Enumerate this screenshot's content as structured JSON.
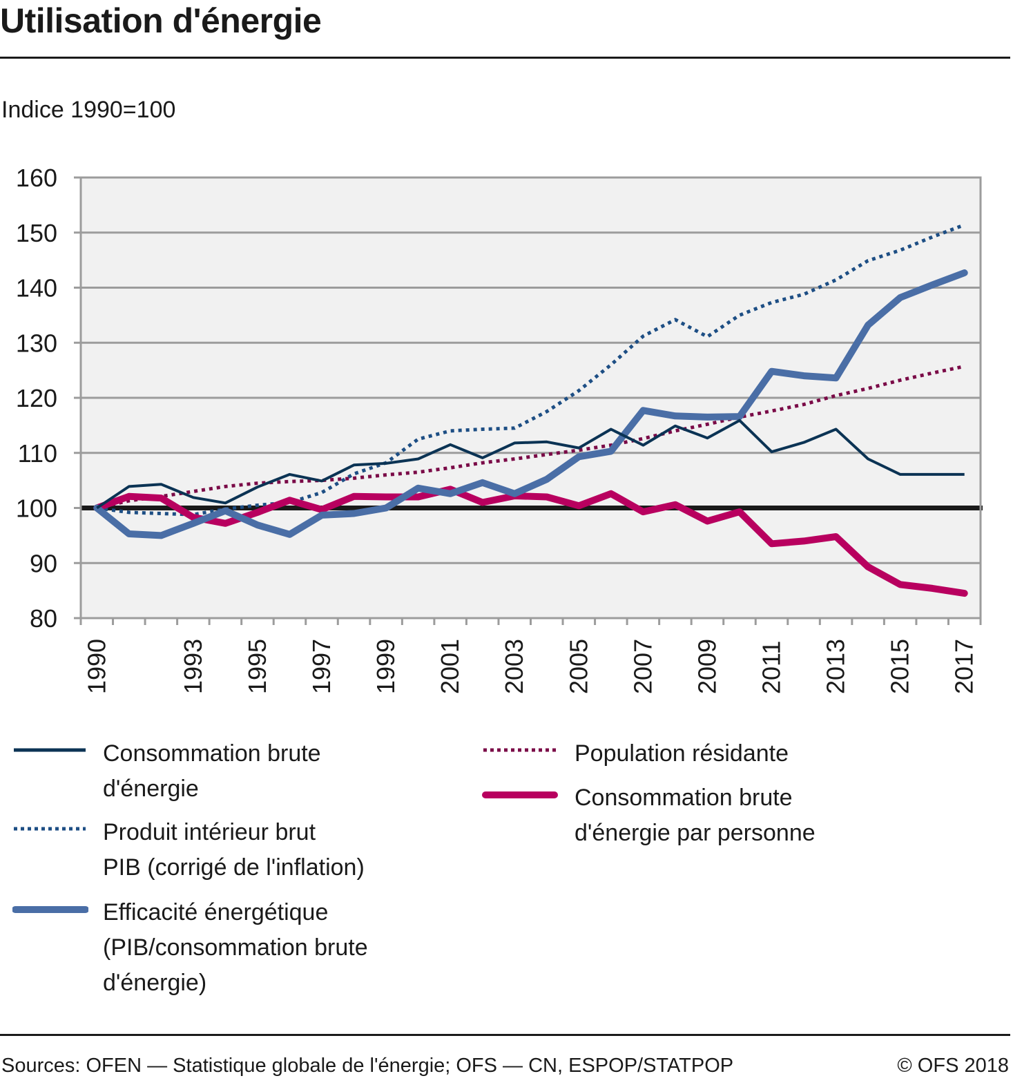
{
  "header": {
    "title": "Utilisation d'énergie",
    "subtitle": "Indice 1990=100"
  },
  "footer": {
    "sources": "Sources: OFEN — Statistique globale de l'énergie; OFS — CN, ESPOP/STATPOP",
    "copyright": "© OFS 2018"
  },
  "colors": {
    "consommation": "#0b3354",
    "pib": "#1d4e84",
    "efficacite": "#4a6ea6",
    "population": "#7a0a47",
    "par_personne": "#b8005f",
    "baseline": "#1a1a1a",
    "plot_bg": "#f1f1f1",
    "grid": "#9c9c9c"
  },
  "chart_data": {
    "type": "line",
    "title": "Utilisation d'énergie",
    "subtitle": "Indice 1990=100",
    "xlabel": "",
    "ylabel": "Indice 1990=100",
    "ylim": [
      80,
      160
    ],
    "yticks": [
      "160",
      "150",
      "140",
      "130",
      "120",
      "110",
      "100",
      "90",
      "80"
    ],
    "ytick_values": [
      160,
      150,
      140,
      130,
      120,
      110,
      100,
      90,
      80
    ],
    "grid": true,
    "baseline": 100,
    "x": [
      1990,
      1991,
      1992,
      1993,
      1994,
      1995,
      1996,
      1997,
      1998,
      1999,
      2000,
      2001,
      2002,
      2003,
      2004,
      2005,
      2006,
      2007,
      2008,
      2009,
      2010,
      2011,
      2012,
      2013,
      2014,
      2015,
      2016,
      2017
    ],
    "xtick_labels": [
      "1990",
      "1993",
      "1995",
      "1997",
      "1999",
      "2001",
      "2003",
      "2005",
      "2007",
      "2009",
      "2011",
      "2013",
      "2015",
      "2017"
    ],
    "legend_position": "bottom",
    "series": [
      {
        "key": "consommation",
        "name": "Consommation brute d'énergie",
        "legend_label": "Consommation brute\nd'énergie",
        "style": "solid-thin",
        "values": [
          100,
          103.9,
          104.3,
          101.9,
          100.9,
          103.8,
          106.1,
          104.9,
          107.8,
          108.1,
          108.9,
          111.5,
          109.1,
          111.8,
          112.0,
          110.9,
          114.3,
          111.4,
          114.9,
          112.7,
          115.9,
          110.2,
          111.9,
          114.3,
          108.9,
          106.1,
          106.1,
          106.1
        ]
      },
      {
        "key": "pib",
        "name": "Produit intérieur brut PIB (corrigé de l'inflation)",
        "legend_label": "Produit intérieur brut\nPIB (corrigé de l'inflation)",
        "style": "dotted",
        "values": [
          100,
          99.2,
          99.0,
          98.8,
          99.8,
          100.5,
          101.0,
          102.8,
          106.2,
          108.2,
          112.5,
          114.0,
          114.3,
          114.5,
          117.5,
          121.3,
          126.0,
          131.2,
          134.2,
          131.1,
          135.0,
          137.3,
          138.8,
          141.4,
          144.9,
          146.8,
          149.2,
          151.4
        ]
      },
      {
        "key": "efficacite",
        "name": "Efficacité énergétique (PIB/consommation brute d'énergie)",
        "legend_label": "Efficacité énergétique\n(PIB/consommation brute\nd'énergie)",
        "style": "solid-thick",
        "values": [
          100,
          95.3,
          95.0,
          97.2,
          99.5,
          96.9,
          95.2,
          98.7,
          99.0,
          100.0,
          103.6,
          102.6,
          104.6,
          102.6,
          105.2,
          109.3,
          110.3,
          117.7,
          116.7,
          116.5,
          116.6,
          124.8,
          124.0,
          123.6,
          133.2,
          138.2,
          140.5,
          142.7
        ]
      },
      {
        "key": "population",
        "name": "Population résidante",
        "legend_label": "Population résidante",
        "style": "dotted",
        "values": [
          100,
          101.3,
          102.1,
          103.0,
          103.9,
          104.5,
          104.8,
          105.0,
          105.4,
          106.0,
          106.5,
          107.3,
          108.2,
          108.9,
          109.7,
          110.5,
          111.4,
          112.6,
          114.0,
          115.2,
          116.5,
          117.6,
          118.8,
          120.4,
          121.7,
          123.2,
          124.5,
          125.7
        ]
      },
      {
        "key": "par_personne",
        "name": "Consommation brute d'énergie par personne",
        "legend_label": "Consommation brute\nd'énergie par personne",
        "style": "solid-thick",
        "values": [
          100,
          102.1,
          101.8,
          98.3,
          97.2,
          99.2,
          101.4,
          99.7,
          102.1,
          102.0,
          102.0,
          103.4,
          101.0,
          102.2,
          102.0,
          100.4,
          102.6,
          99.3,
          100.6,
          97.6,
          99.3,
          93.5,
          94.0,
          94.8,
          89.3,
          86.1,
          85.4,
          84.5
        ]
      }
    ]
  }
}
